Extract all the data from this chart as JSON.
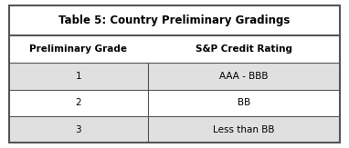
{
  "title": "Table 5: Country Preliminary Gradings",
  "col_headers": [
    "Preliminary Grade",
    "S&P Credit Rating"
  ],
  "rows": [
    [
      "1",
      "AAA - BBB"
    ],
    [
      "2",
      "BB"
    ],
    [
      "3",
      "Less than BB"
    ]
  ],
  "outer_border_color": "#555555",
  "inner_line_color": "#555555",
  "title_bg": "#ffffff",
  "header_bg": "#ffffff",
  "row_bg_odd": "#e0e0e0",
  "row_bg_even": "#ffffff",
  "title_fontsize": 8.5,
  "header_fontsize": 7.5,
  "data_fontsize": 7.5,
  "col_split": 0.42,
  "fig_bg": "#ffffff",
  "fig_width": 3.82,
  "fig_height": 1.63,
  "dpi": 100
}
